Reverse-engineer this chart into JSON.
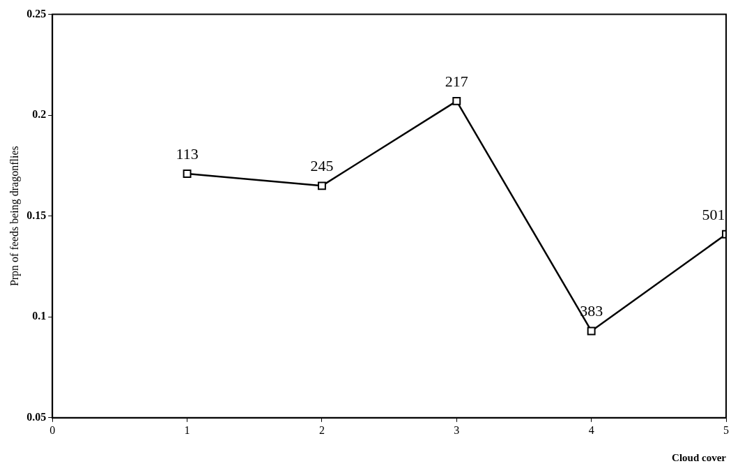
{
  "chart_data": {
    "type": "line",
    "xlabel": "Cloud cover",
    "ylabel": "Prpn of feeds being dragonflies",
    "x": [
      1,
      2,
      3,
      4,
      5
    ],
    "series": [
      {
        "color": "#000000",
        "values": [
          0.171,
          0.165,
          0.207,
          0.093,
          0.141
        ]
      }
    ],
    "xlim": [
      0,
      5
    ],
    "xticks": [
      0,
      1,
      2,
      3,
      4,
      5
    ],
    "ylim": [
      0.05,
      0.25
    ],
    "yticks": [
      0.05,
      0.1,
      0.15,
      0.2,
      0.25
    ],
    "grid": false,
    "legend": false,
    "marker": "square",
    "line_style": "solid",
    "annotations": [
      {
        "text": "113",
        "x": 1,
        "y": 0.171
      },
      {
        "text": "245",
        "x": 2,
        "y": 0.165
      },
      {
        "text": "217",
        "x": 3,
        "y": 0.207
      },
      {
        "text": "383",
        "x": 4,
        "y": 0.093
      },
      {
        "text": "501",
        "x": 5,
        "y": 0.141
      }
    ]
  }
}
